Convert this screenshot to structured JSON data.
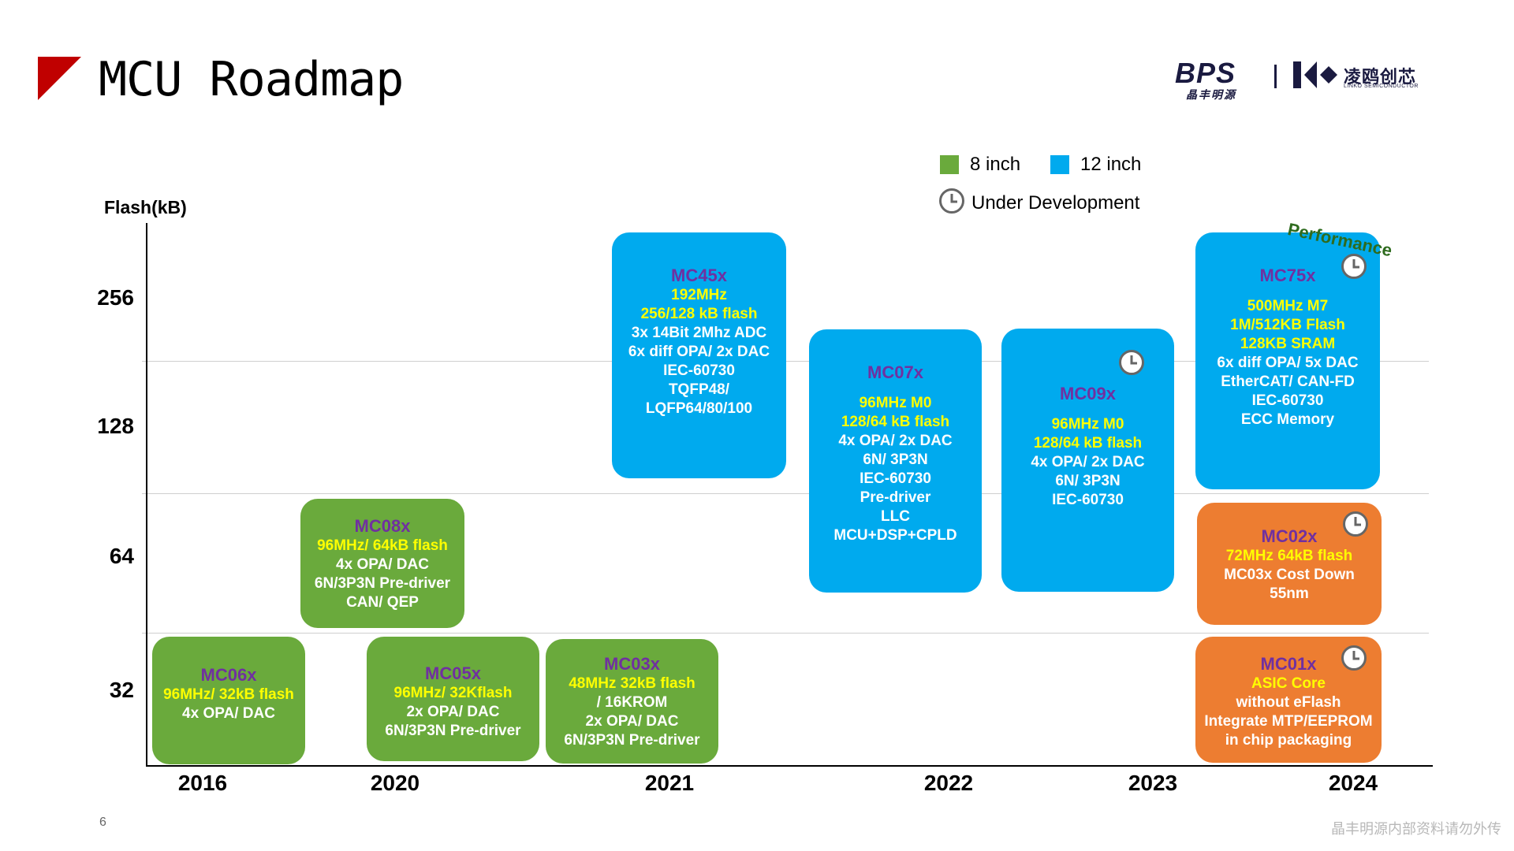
{
  "header": {
    "title": "MCU Roadmap",
    "logo_bps": "BPS",
    "logo_bps_sub": "晶丰明源",
    "logo_lk_name": "凌鸥创芯",
    "logo_lk_sub": "LINKO SEMICONDUCTOR"
  },
  "legend": {
    "green_label": "8 inch",
    "blue_label": "12 inch",
    "dev_label": "Under Development",
    "green_color": "#6aaa3c",
    "blue_color": "#00aaee",
    "orange_color": "#ed7d31"
  },
  "axes": {
    "y_label": "Flash(kB)",
    "y_ticks": [
      "256",
      "128",
      "64",
      "32"
    ],
    "x_ticks": [
      "2016",
      "2020",
      "2021",
      "2022",
      "2023",
      "2024"
    ]
  },
  "performance_label": "Performance",
  "boxes": {
    "mc06x": {
      "name": "MC06x",
      "hl": [
        "96MHz/ 32kB flash"
      ],
      "lines": [
        "4x OPA/ DAC"
      ]
    },
    "mc08x": {
      "name": "MC08x",
      "hl": [
        "96MHz/ 64kB flash"
      ],
      "lines": [
        "4x OPA/ DAC",
        "6N/3P3N Pre-driver",
        "CAN/ QEP"
      ]
    },
    "mc05x": {
      "name": "MC05x",
      "hl": [
        "96MHz/ 32Kflash"
      ],
      "lines": [
        "2x OPA/ DAC",
        "6N/3P3N Pre-driver"
      ]
    },
    "mc03x": {
      "name": "MC03x",
      "hl": [
        "48MHz 32kB flash",
        "/ 16KROM"
      ],
      "lines": [
        "2x OPA/ DAC",
        "6N/3P3N Pre-driver"
      ]
    },
    "mc45x": {
      "name": "MC45x",
      "hl": [
        "192MHz",
        "256/128 kB flash"
      ],
      "lines": [
        "3x 14Bit 2Mhz ADC",
        "6x diff OPA/ 2x DAC",
        "IEC-60730",
        "TQFP48/",
        "LQFP64/80/100"
      ]
    },
    "mc07x": {
      "name": "MC07x",
      "hl": [
        "96MHz M0",
        "128/64 kB flash"
      ],
      "lines": [
        "4x OPA/ 2x DAC",
        "6N/ 3P3N",
        "IEC-60730",
        "Pre-driver",
        "LLC",
        "MCU+DSP+CPLD"
      ]
    },
    "mc09x": {
      "name": "MC09x",
      "hl": [
        "96MHz M0",
        "128/64 kB flash"
      ],
      "lines": [
        "4x OPA/ 2x DAC",
        "6N/ 3P3N",
        "IEC-60730"
      ]
    },
    "mc75x": {
      "name": "MC75x",
      "hl": [
        "500MHz M7",
        "1M/512KB Flash",
        "128KB SRAM"
      ],
      "lines": [
        "6x diff OPA/ 5x DAC",
        "EtherCAT/ CAN-FD",
        "IEC-60730",
        "ECC Memory"
      ]
    },
    "mc02x": {
      "name": "MC02x",
      "hl": [
        "72MHz 64kB flash"
      ],
      "lines": [
        "MC03x Cost Down",
        "55nm"
      ]
    },
    "mc01x": {
      "name": "MC01x",
      "hl": [
        "ASIC Core"
      ],
      "lines": [
        "without eFlash",
        "Integrate MTP/EEPROM",
        "in chip packaging"
      ]
    }
  },
  "footer": {
    "page_number": "6",
    "note": "晶丰明源内部资料请勿外传"
  }
}
